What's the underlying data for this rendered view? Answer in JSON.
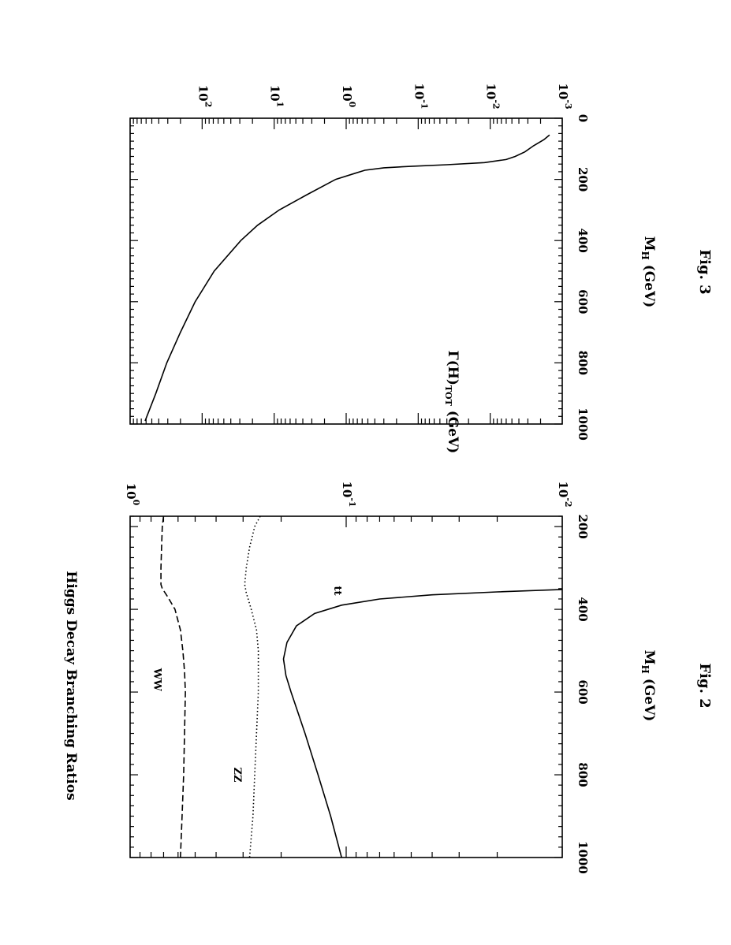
{
  "chart_data": [
    {
      "type": "line",
      "figure_label": "Fig. 2",
      "xlabel": "M",
      "xlabel_sub": "H",
      "xlabel_unit": "(GeV)",
      "ylabel": "Higgs Decay Branching Ratios",
      "xlim": [
        175,
        1000
      ],
      "ylim": [
        0.01,
        1
      ],
      "yscale": "log",
      "x_ticks": [
        "200",
        "400",
        "600",
        "800",
        "1000"
      ],
      "y_ticks": [
        {
          "base": "10",
          "exp": "0"
        },
        {
          "base": "10",
          "exp": "-1"
        },
        {
          "base": "10",
          "exp": "-2"
        }
      ],
      "series": [
        {
          "name": "WW",
          "style": "dashed",
          "points": [
            [
              175,
              0.7
            ],
            [
              200,
              0.71
            ],
            [
              250,
              0.715
            ],
            [
              300,
              0.72
            ],
            [
              340,
              0.72
            ],
            [
              350,
              0.71
            ],
            [
              370,
              0.67
            ],
            [
              400,
              0.62
            ],
            [
              450,
              0.585
            ],
            [
              500,
              0.57
            ],
            [
              550,
              0.56
            ],
            [
              600,
              0.555
            ],
            [
              700,
              0.56
            ],
            [
              800,
              0.565
            ],
            [
              900,
              0.575
            ],
            [
              1000,
              0.585
            ]
          ]
        },
        {
          "name": "ZZ",
          "style": "dotted",
          "points": [
            [
              175,
              0.25
            ],
            [
              200,
              0.265
            ],
            [
              250,
              0.28
            ],
            [
              300,
              0.29
            ],
            [
              340,
              0.295
            ],
            [
              360,
              0.29
            ],
            [
              400,
              0.275
            ],
            [
              450,
              0.26
            ],
            [
              500,
              0.255
            ],
            [
              600,
              0.255
            ],
            [
              700,
              0.26
            ],
            [
              800,
              0.265
            ],
            [
              900,
              0.27
            ],
            [
              1000,
              0.28
            ]
          ]
        },
        {
          "name": "tt",
          "style": "solid",
          "points": [
            [
              352,
              0.01
            ],
            [
              358,
              0.02
            ],
            [
              365,
              0.04
            ],
            [
              375,
              0.07
            ],
            [
              390,
              0.105
            ],
            [
              410,
              0.14
            ],
            [
              440,
              0.17
            ],
            [
              480,
              0.188
            ],
            [
              520,
              0.195
            ],
            [
              560,
              0.19
            ],
            [
              600,
              0.18
            ],
            [
              700,
              0.155
            ],
            [
              800,
              0.135
            ],
            [
              900,
              0.118
            ],
            [
              1000,
              0.105
            ]
          ]
        }
      ],
      "annotations": [
        {
          "text": "WW",
          "x": 570,
          "y": 0.75
        },
        {
          "text": "ZZ",
          "x": 800,
          "y": 0.32
        },
        {
          "text": "tt",
          "x": 355,
          "y": 0.11
        }
      ]
    },
    {
      "type": "line",
      "figure_label": "Fig. 3",
      "xlabel": "M",
      "xlabel_sub": "H",
      "xlabel_unit": "(GeV)",
      "ylabel": "Γ(H)",
      "ylabel_sub": "TOT",
      "ylabel_unit": "(GeV)",
      "xlim": [
        0,
        1000
      ],
      "ylim": [
        0.001,
        1000
      ],
      "yscale": "log",
      "x_ticks": [
        "0",
        "200",
        "400",
        "600",
        "800",
        "1000"
      ],
      "y_ticks": [
        {
          "base": "10",
          "exp": "2"
        },
        {
          "base": "10",
          "exp": "1"
        },
        {
          "base": "10",
          "exp": "0"
        },
        {
          "base": "10",
          "exp": "-1"
        },
        {
          "base": "10",
          "exp": "-2"
        },
        {
          "base": "10",
          "exp": "-3"
        }
      ],
      "series": [
        {
          "name": "",
          "style": "solid",
          "points": [
            [
              55,
              0.0015
            ],
            [
              70,
              0.0018
            ],
            [
              90,
              0.0025
            ],
            [
              110,
              0.0033
            ],
            [
              125,
              0.0045
            ],
            [
              135,
              0.006
            ],
            [
              145,
              0.012
            ],
            [
              152,
              0.04
            ],
            [
              157,
              0.12
            ],
            [
              162,
              0.3
            ],
            [
              170,
              0.55
            ],
            [
              180,
              0.75
            ],
            [
              200,
              1.4
            ],
            [
              250,
              3.5
            ],
            [
              300,
              8.5
            ],
            [
              350,
              17
            ],
            [
              400,
              29
            ],
            [
              500,
              68
            ],
            [
              600,
              125
            ],
            [
              700,
              200
            ],
            [
              800,
              310
            ],
            [
              900,
              440
            ],
            [
              990,
              620
            ]
          ]
        }
      ]
    }
  ]
}
